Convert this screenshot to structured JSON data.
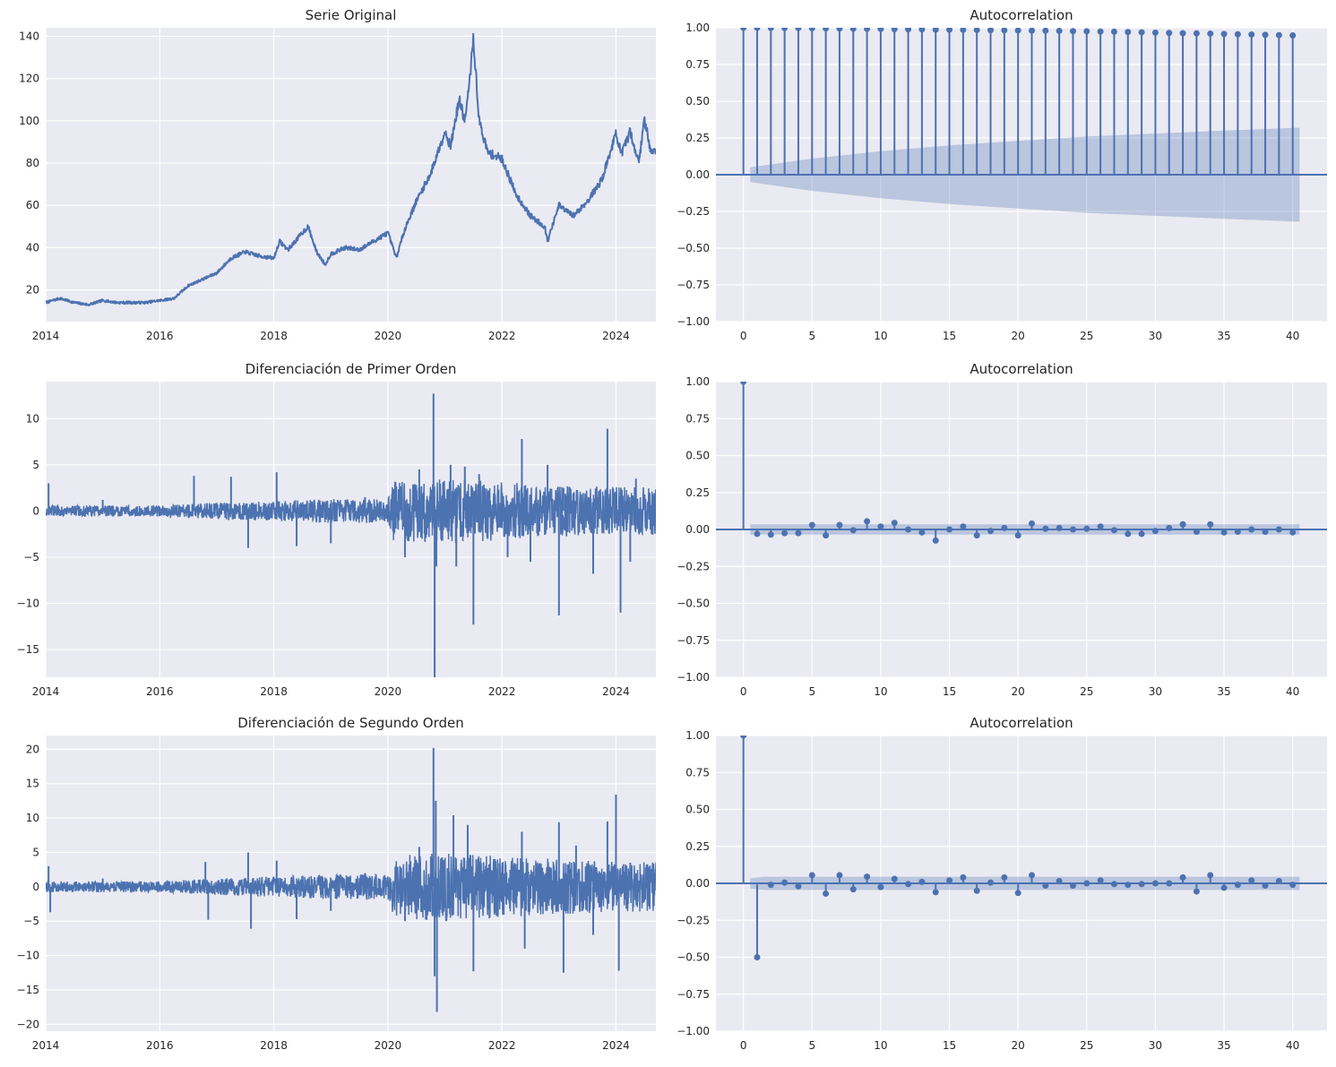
{
  "chart_data": [
    {
      "type": "line",
      "title": "Serie Original",
      "xlim": [
        2014.0,
        2024.7
      ],
      "ylim": [
        5,
        144
      ],
      "xticks": [
        2014,
        2016,
        2018,
        2020,
        2022,
        2024
      ],
      "yticks": [
        20,
        40,
        60,
        80,
        100,
        120,
        140
      ],
      "grid": true,
      "color": "#4C72B0",
      "series": [
        {
          "x": [
            2014.0,
            2014.25,
            2014.5,
            2014.75,
            2015.0,
            2015.25,
            2015.5,
            2015.75,
            2016.0,
            2016.25,
            2016.5,
            2016.75,
            2017.0,
            2017.25,
            2017.5,
            2017.75,
            2018.0,
            2018.1,
            2018.25,
            2018.5,
            2018.6,
            2018.75,
            2018.9,
            2019.0,
            2019.25,
            2019.5,
            2019.75,
            2020.0,
            2020.15,
            2020.2,
            2020.3,
            2020.5,
            2020.75,
            2021.0,
            2021.1,
            2021.25,
            2021.35,
            2021.42,
            2021.5,
            2021.6,
            2021.75,
            2022.0,
            2022.25,
            2022.5,
            2022.75,
            2022.8,
            2023.0,
            2023.25,
            2023.5,
            2023.75,
            2024.0,
            2024.1,
            2024.25,
            2024.4,
            2024.5,
            2024.6,
            2024.7
          ],
          "y": [
            14,
            16,
            14,
            13,
            15,
            14,
            14,
            14,
            15,
            16,
            22,
            25,
            28,
            35,
            38,
            36,
            35,
            43,
            39,
            47,
            50,
            38,
            32,
            37,
            40,
            39,
            43,
            47,
            35,
            40,
            49,
            62,
            75,
            95,
            88,
            110,
            100,
            115,
            139,
            100,
            85,
            82,
            65,
            55,
            50,
            43,
            60,
            55,
            62,
            72,
            94,
            84,
            95,
            80,
            101,
            87,
            85
          ]
        }
      ]
    },
    {
      "type": "bar",
      "title": "Autocorrelation",
      "xlim": [
        -2,
        42.5
      ],
      "ylim": [
        -1.0,
        1.0
      ],
      "xticks": [
        0,
        5,
        10,
        15,
        20,
        25,
        30,
        35,
        40
      ],
      "yticks": [
        "-1.00",
        "-0.75",
        "-0.50",
        "-0.25",
        "0.00",
        "0.25",
        "0.50",
        "0.75",
        "1.00"
      ],
      "grid": true,
      "color": "#4C72B0",
      "lags": [
        0,
        1,
        2,
        3,
        4,
        5,
        6,
        7,
        8,
        9,
        10,
        11,
        12,
        13,
        14,
        15,
        16,
        17,
        18,
        19,
        20,
        21,
        22,
        23,
        24,
        25,
        26,
        27,
        28,
        29,
        30,
        31,
        32,
        33,
        34,
        35,
        36,
        37,
        38,
        39,
        40
      ],
      "values": [
        1.0,
        1.0,
        0.999,
        0.998,
        0.998,
        0.997,
        0.996,
        0.995,
        0.994,
        0.993,
        0.992,
        0.991,
        0.99,
        0.989,
        0.988,
        0.987,
        0.986,
        0.985,
        0.984,
        0.983,
        0.982,
        0.981,
        0.98,
        0.979,
        0.977,
        0.976,
        0.974,
        0.973,
        0.971,
        0.969,
        0.967,
        0.965,
        0.963,
        0.962,
        0.96,
        0.958,
        0.956,
        0.954,
        0.952,
        0.95,
        0.948
      ],
      "confidence_band": {
        "lags": [
          0.5,
          5,
          10,
          15,
          20,
          25,
          30,
          35,
          40.5
        ],
        "values": [
          0.05,
          0.11,
          0.16,
          0.2,
          0.23,
          0.26,
          0.28,
          0.3,
          0.32
        ]
      }
    },
    {
      "type": "line",
      "title": "Diferenciación de Primer Orden",
      "xlim": [
        2014.0,
        2024.7
      ],
      "ylim": [
        -18,
        14
      ],
      "xticks": [
        2014,
        2016,
        2018,
        2020,
        2022,
        2024
      ],
      "yticks": [
        -15,
        -10,
        -5,
        0,
        5,
        10
      ],
      "grid": true,
      "color": "#4C72B0",
      "spikes": {
        "x": [
          2014.05,
          2015.0,
          2016.6,
          2017.25,
          2017.55,
          2018.05,
          2018.4,
          2019.0,
          2019.6,
          2020.3,
          2020.55,
          2020.8,
          2020.82,
          2020.85,
          2021.1,
          2021.2,
          2021.35,
          2021.5,
          2021.6,
          2022.1,
          2022.35,
          2022.5,
          2022.8,
          2023.0,
          2023.08,
          2023.6,
          2023.85,
          2024.08,
          2024.25,
          2024.35
        ],
        "y": [
          3,
          1.2,
          3.8,
          3.7,
          -4,
          4.2,
          -3.8,
          -3.5,
          1.5,
          -5,
          4.5,
          12.7,
          -18,
          -6,
          5,
          -6,
          4.8,
          -12.3,
          4,
          -5,
          7.8,
          -5.5,
          5,
          -11.3,
          2.5,
          -6.8,
          8.9,
          -11,
          -5.5,
          3.5
        ]
      },
      "envelope": {
        "x": [
          2014.0,
          2016.0,
          2017.0,
          2019.0,
          2020.0,
          2020.1,
          2021.0,
          2022.0,
          2023.0,
          2024.0,
          2024.7
        ],
        "y": [
          0.6,
          0.6,
          0.9,
          1.3,
          1.3,
          3.2,
          3.5,
          3.2,
          2.8,
          2.6,
          2.6
        ]
      }
    },
    {
      "type": "bar",
      "title": "Autocorrelation",
      "xlim": [
        -2,
        42.5
      ],
      "ylim": [
        -1.0,
        1.0
      ],
      "xticks": [
        0,
        5,
        10,
        15,
        20,
        25,
        30,
        35,
        40
      ],
      "yticks": [
        "-1.00",
        "-0.75",
        "-0.50",
        "-0.25",
        "0.00",
        "0.25",
        "0.50",
        "0.75",
        "1.00"
      ],
      "grid": true,
      "color": "#4C72B0",
      "lags": [
        0,
        1,
        2,
        3,
        4,
        5,
        6,
        7,
        8,
        9,
        10,
        11,
        12,
        13,
        14,
        15,
        16,
        17,
        18,
        19,
        20,
        21,
        22,
        23,
        24,
        25,
        26,
        27,
        28,
        29,
        30,
        31,
        32,
        33,
        34,
        35,
        36,
        37,
        38,
        39,
        40
      ],
      "values": [
        1.0,
        -0.03,
        -0.035,
        -0.025,
        -0.025,
        0.03,
        -0.04,
        0.03,
        -0.005,
        0.055,
        0.02,
        0.045,
        0.0,
        -0.02,
        -0.075,
        0.0,
        0.02,
        -0.04,
        -0.01,
        0.01,
        -0.04,
        0.04,
        0.005,
        0.01,
        0.0,
        0.005,
        0.02,
        -0.005,
        -0.03,
        -0.03,
        -0.01,
        0.01,
        0.035,
        -0.015,
        0.035,
        -0.02,
        -0.015,
        0.0,
        -0.015,
        0.0,
        -0.02
      ],
      "confidence_band": {
        "lags": [
          0.5,
          40.5
        ],
        "values": [
          0.035,
          0.035
        ]
      }
    },
    {
      "type": "line",
      "title": "Diferenciación de Segundo Orden",
      "xlim": [
        2014.0,
        2024.7
      ],
      "ylim": [
        -21,
        22
      ],
      "xticks": [
        2014,
        2016,
        2018,
        2020,
        2022,
        2024
      ],
      "yticks": [
        -20,
        -15,
        -10,
        -5,
        0,
        5,
        10,
        15,
        20
      ],
      "grid": true,
      "color": "#4C72B0",
      "spikes": {
        "x": [
          2014.05,
          2014.08,
          2015.0,
          2016.8,
          2016.85,
          2017.55,
          2017.6,
          2018.05,
          2018.4,
          2019.0,
          2019.6,
          2020.3,
          2020.55,
          2020.8,
          2020.82,
          2020.84,
          2020.86,
          2021.15,
          2021.4,
          2021.5,
          2021.55,
          2022.35,
          2022.4,
          2023.0,
          2023.08,
          2023.3,
          2023.6,
          2023.85,
          2024.0,
          2024.05,
          2024.25
        ],
        "y": [
          3,
          -3.7,
          1.2,
          3.6,
          -4.8,
          5,
          -6.1,
          3.8,
          -4.7,
          -3.5,
          2,
          -5,
          5.8,
          20.2,
          -13,
          12.5,
          -18.2,
          10.4,
          9,
          -12.3,
          4,
          8,
          -9,
          9.4,
          -12.5,
          6,
          -7,
          9.5,
          13.4,
          -12.2,
          3.5
        ]
      },
      "envelope": {
        "x": [
          2014.0,
          2016.0,
          2017.0,
          2019.0,
          2020.0,
          2020.1,
          2021.0,
          2022.0,
          2023.0,
          2024.0,
          2024.7
        ],
        "y": [
          0.8,
          0.8,
          1.2,
          1.8,
          1.8,
          4.5,
          5.0,
          4.5,
          4.0,
          3.6,
          3.6
        ]
      }
    },
    {
      "type": "bar",
      "title": "Autocorrelation",
      "xlim": [
        -2,
        42.5
      ],
      "ylim": [
        -1.0,
        1.0
      ],
      "xticks": [
        0,
        5,
        10,
        15,
        20,
        25,
        30,
        35,
        40
      ],
      "yticks": [
        "-1.00",
        "-0.75",
        "-0.50",
        "-0.25",
        "0.00",
        "0.25",
        "0.50",
        "0.75",
        "1.00"
      ],
      "grid": true,
      "color": "#4C72B0",
      "lags": [
        0,
        1,
        2,
        3,
        4,
        5,
        6,
        7,
        8,
        9,
        10,
        11,
        12,
        13,
        14,
        15,
        16,
        17,
        18,
        19,
        20,
        21,
        22,
        23,
        24,
        25,
        26,
        27,
        28,
        29,
        30,
        31,
        32,
        33,
        34,
        35,
        36,
        37,
        38,
        39,
        40
      ],
      "values": [
        1.0,
        -0.5,
        -0.01,
        0.005,
        -0.02,
        0.055,
        -0.07,
        0.055,
        -0.04,
        0.045,
        -0.025,
        0.03,
        -0.005,
        0.01,
        -0.06,
        0.02,
        0.04,
        -0.05,
        0.005,
        0.04,
        -0.065,
        0.055,
        -0.015,
        0.015,
        -0.015,
        0.0,
        0.02,
        -0.005,
        -0.01,
        -0.005,
        0.0,
        0.0,
        0.04,
        -0.055,
        0.055,
        -0.03,
        -0.01,
        0.02,
        -0.015,
        0.015,
        -0.01
      ],
      "confidence_band": {
        "lags": [
          0.5,
          1.5,
          40.5
        ],
        "values": [
          0.035,
          0.045,
          0.045
        ]
      }
    }
  ]
}
